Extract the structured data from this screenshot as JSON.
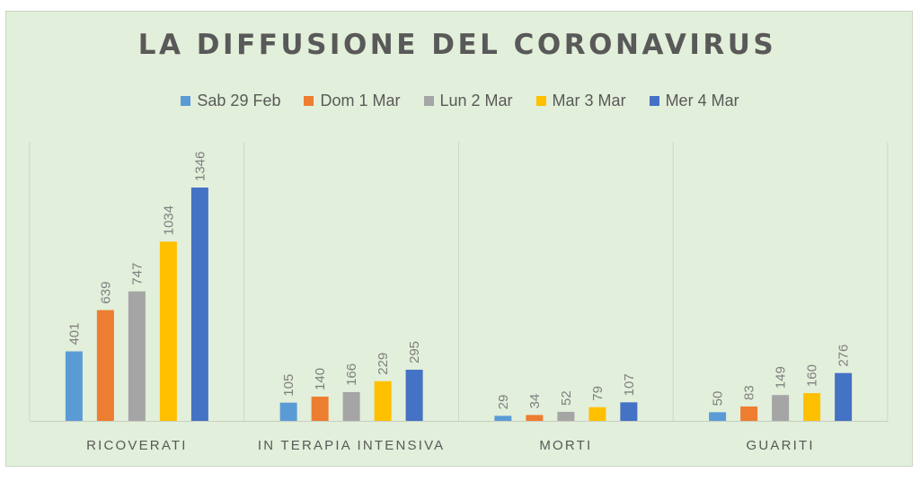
{
  "chart_data": {
    "type": "bar",
    "title": "LA DIFFUSIONE DEL CORONAVIRUS",
    "xlabel": "",
    "ylabel": "",
    "categories": [
      "RICOVERATI",
      "IN TERAPIA INTENSIVA",
      "MORTI",
      "GUARITI"
    ],
    "series": [
      {
        "name": "Sab 29 Feb",
        "color": "#5b9bd5",
        "values": [
          401,
          105,
          29,
          50
        ]
      },
      {
        "name": "Dom 1 Mar",
        "color": "#ed7d31",
        "values": [
          639,
          140,
          34,
          83
        ]
      },
      {
        "name": "Lun 2 Mar",
        "color": "#a5a5a5",
        "values": [
          747,
          166,
          52,
          149
        ]
      },
      {
        "name": "Mar 3 Mar",
        "color": "#ffc000",
        "values": [
          1034,
          229,
          79,
          160
        ]
      },
      {
        "name": "Mer 4 Mar",
        "color": "#4472c4",
        "values": [
          1346,
          295,
          107,
          276
        ]
      }
    ],
    "ylim": [
      0,
      1346
    ],
    "grid": false,
    "legend_position": "top",
    "data_labels": true
  }
}
